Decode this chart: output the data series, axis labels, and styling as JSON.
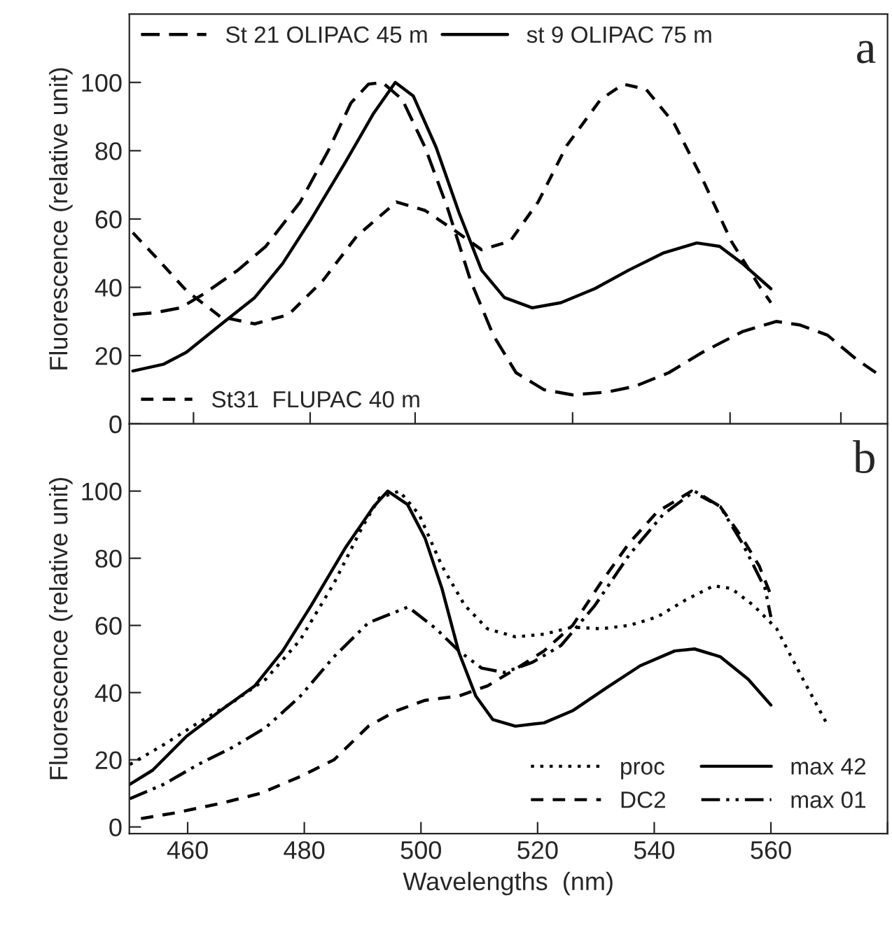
{
  "chart_data": [
    {
      "type": "line",
      "ylabel": "Fluorescence (relative unit)",
      "annotations": [
        "a"
      ],
      "xlim": [
        450,
        580
      ],
      "ylim": [
        0,
        120
      ],
      "yticks": [
        0,
        20,
        40,
        60,
        80,
        100
      ],
      "xticks": [
        {
          "value": 461,
          "label": null
        },
        {
          "value": 481,
          "label": null
        },
        {
          "value": 499,
          "label": null
        },
        {
          "value": 526,
          "label": null
        },
        {
          "value": 553,
          "label": null
        },
        {
          "value": 572,
          "label": null
        }
      ],
      "tick_labels": "y",
      "legend": "top",
      "grid": false,
      "series": [
        {
          "name": "St 21 OLIPAC 45 m",
          "color": "#000000",
          "line_style": "longdash",
          "x": [
            450.6,
            454.5,
            458.8,
            462.7,
            468.6,
            473.4,
            479.3,
            484.1,
            488,
            491,
            493.4,
            496.8,
            500.7,
            504.6,
            508.5,
            512.4,
            516.3,
            521.1,
            526,
            531.8,
            536.7,
            542.5,
            548.3,
            555.1,
            560.9,
            564.9,
            569.7,
            574.6,
            578
          ],
          "values": [
            32,
            32.6,
            34,
            38,
            45,
            52,
            65,
            80,
            94,
            99.5,
            100,
            95,
            81,
            63,
            42,
            26,
            15,
            10,
            8.5,
            9.3,
            11,
            15,
            21,
            27,
            30,
            29,
            26,
            19,
            15
          ]
        },
        {
          "name": "st 9 OLIPAC 75 m",
          "color": "#000000",
          "line_style": "solid",
          "x": [
            450.6,
            455.9,
            459.8,
            465.6,
            471.5,
            476.3,
            481.2,
            487,
            491.9,
            495.6,
            498.7,
            502.6,
            506.5,
            510.4,
            514.3,
            519.1,
            524,
            529.8,
            535.6,
            541.5,
            547.3,
            551.2,
            555.1,
            560
          ],
          "values": [
            15.5,
            17.5,
            21,
            29,
            37,
            47,
            60,
            76.5,
            91,
            100,
            96,
            81,
            62,
            45,
            37,
            34,
            35.5,
            39.6,
            45,
            50,
            53,
            52,
            47,
            39.6
          ]
        },
        {
          "name": "St31  FLUPAC 40 m",
          "color": "#000000",
          "line_style": "dashed",
          "x": [
            450.6,
            455,
            459.8,
            465.6,
            471.5,
            477.3,
            483.2,
            489,
            495.8,
            500.7,
            505.5,
            510.4,
            515.3,
            520.1,
            525,
            530.8,
            534.7,
            538.6,
            543.4,
            548.3,
            553.2,
            558,
            560
          ],
          "values": [
            56,
            48,
            39,
            31.4,
            29.3,
            32,
            42,
            55,
            65,
            62.5,
            57,
            51,
            53.5,
            65,
            81.5,
            95,
            99.5,
            98,
            88,
            71.6,
            53.5,
            40.4,
            35.5
          ]
        }
      ]
    },
    {
      "type": "line",
      "xlabel": "Wavelengths  (nm)",
      "ylabel": "Fluorescence (relative unit)",
      "annotations": [
        "b"
      ],
      "xlim": [
        450,
        580
      ],
      "ylim": [
        -2,
        120
      ],
      "yticks": [
        0,
        20,
        40,
        60,
        80,
        100
      ],
      "xticks": [
        460,
        480,
        500,
        520,
        540,
        560,
        {
          "value": 580,
          "label": null
        }
      ],
      "legend": "bottom right",
      "grid": false,
      "series": [
        {
          "name": "proc",
          "color": "#000000",
          "line_style": "dotted",
          "x": [
            450.1,
            455.9,
            461.8,
            467.6,
            473.4,
            479.3,
            485.1,
            490,
            492.9,
            496.3,
            499.7,
            503.6,
            507.5,
            511.4,
            516.2,
            521.1,
            526,
            530.8,
            535.7,
            540.5,
            545.4,
            550.2,
            553.2,
            557,
            561,
            565,
            569.7
          ],
          "values": [
            18.6,
            24.5,
            31,
            37,
            44,
            55.7,
            72.6,
            89.5,
            98,
            100,
            93,
            77.7,
            66,
            59,
            56.6,
            57.4,
            59.5,
            59,
            60,
            62.5,
            67.6,
            71.8,
            71,
            66,
            59,
            45.6,
            30.4
          ]
        },
        {
          "name": "DC2",
          "color": "#000000",
          "line_style": "dashed",
          "x": [
            452,
            457.9,
            465.6,
            472.5,
            479.3,
            485.1,
            491,
            495.8,
            500.7,
            506.5,
            511.4,
            516.2,
            521.1,
            526,
            530.8,
            535.7,
            540.5,
            546.4,
            551.3,
            555.1,
            558,
            560
          ],
          "values": [
            2.5,
            4.2,
            7,
            10,
            15,
            20,
            30,
            34.6,
            37.7,
            39,
            42,
            47,
            52.4,
            60,
            72.6,
            84.5,
            93.8,
            100,
            95.4,
            86,
            77.7,
            69
          ]
        },
        {
          "name": "max 42",
          "color": "#000000",
          "line_style": "solid",
          "x": [
            450.1,
            454,
            459.8,
            465.6,
            471.5,
            476.3,
            481.2,
            487,
            491.9,
            494.3,
            497.7,
            500.7,
            503.6,
            506.5,
            509.4,
            512.3,
            516.2,
            521.1,
            526,
            531.8,
            537.6,
            543.5,
            546.9,
            551.3,
            556.1,
            560
          ],
          "values": [
            12.7,
            16.9,
            27,
            34.6,
            42,
            52.4,
            66,
            83,
            95.4,
            100,
            96,
            86,
            71,
            52,
            39,
            32,
            30,
            31,
            34.6,
            41.4,
            48,
            52.4,
            53,
            50.7,
            44,
            36.3
          ]
        },
        {
          "name": "max 01",
          "color": "#000000",
          "line_style": "dashdotdot",
          "x": [
            450.1,
            455.9,
            461.8,
            467.6,
            473.4,
            479.3,
            485.1,
            491,
            497.8,
            502.6,
            506.5,
            510.4,
            514.3,
            519.1,
            524,
            529.8,
            535.7,
            541.5,
            546.9,
            551.3,
            555.1,
            559,
            560
          ],
          "values": [
            8.4,
            12.7,
            18.6,
            23.6,
            29.6,
            38.9,
            50.7,
            60.8,
            65.5,
            59,
            52.4,
            47.3,
            46,
            49,
            54,
            65.9,
            81,
            93,
            100,
            95.4,
            84.5,
            71,
            62.5
          ]
        }
      ]
    }
  ]
}
